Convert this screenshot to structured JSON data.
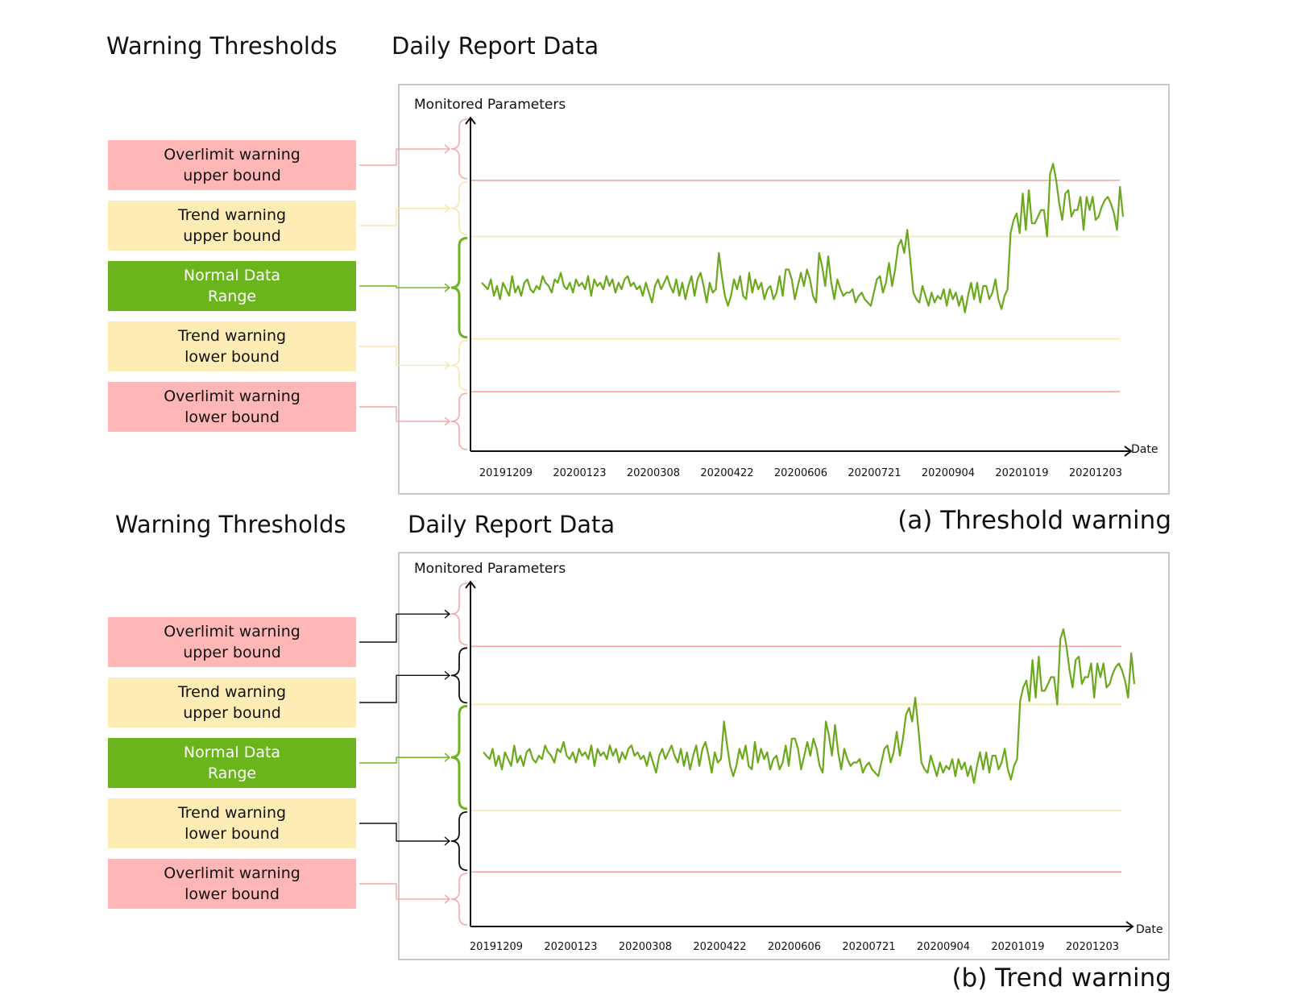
{
  "colors": {
    "overlimit": "#ffb6b6",
    "overlimit_line": "#f4a6a6",
    "trend": "#fdecb3",
    "trend_line": "#f8e6a6",
    "normal": "#6ab41c",
    "series": "#6aa91c",
    "highlight_bracket": "#111111"
  },
  "panels": [
    {
      "thresholds_heading": "Warning Thresholds",
      "data_heading": "Daily Report Data",
      "caption": "(a) Threshold warning",
      "boxes": [
        {
          "kind": "over",
          "line1": "Overlimit warning",
          "line2": "upper bound"
        },
        {
          "kind": "trend",
          "line1": "Trend warning",
          "line2": "upper bound"
        },
        {
          "kind": "normal",
          "line1": "Normal Data",
          "line2": "Range"
        },
        {
          "kind": "trend",
          "line1": "Trend warning",
          "line2": "lower bound"
        },
        {
          "kind": "over",
          "line1": "Overlimit warning",
          "line2": "lower bound"
        }
      ],
      "highlighted_ranges": [
        "normal"
      ]
    },
    {
      "thresholds_heading": "Warning Thresholds",
      "data_heading": "Daily Report Data",
      "caption": "(b) Trend warning",
      "boxes": [
        {
          "kind": "over",
          "line1": "Overlimit warning",
          "line2": "upper bound"
        },
        {
          "kind": "trend",
          "line1": "Trend warning",
          "line2": "upper bound"
        },
        {
          "kind": "normal",
          "line1": "Normal Data",
          "line2": "Range"
        },
        {
          "kind": "trend",
          "line1": "Trend warning",
          "line2": "lower bound"
        },
        {
          "kind": "over",
          "line1": "Overlimit warning",
          "line2": "lower bound"
        }
      ],
      "highlighted_ranges": [
        "normal",
        "trend_upper",
        "trend_lower"
      ]
    }
  ],
  "chart_data": [
    {
      "type": "line",
      "ylabel": "Monitored Parameters",
      "xlabel": "Date",
      "x_ticks": [
        "20191209",
        "20200123",
        "20200308",
        "20200422",
        "20200606",
        "20200721",
        "20200904",
        "20201019",
        "20201203"
      ],
      "y_range": [
        0,
        100
      ],
      "grid": false,
      "thresholds": {
        "overlimit_upper": 82,
        "trend_upper": 65,
        "trend_lower": 34,
        "overlimit_lower": 18
      },
      "series": [
        {
          "values": [
            51,
            50,
            49,
            52,
            47,
            50,
            46,
            51,
            49,
            47,
            53,
            48,
            50,
            47,
            51,
            52,
            49,
            48,
            50,
            49,
            53,
            51,
            50,
            48,
            52,
            51,
            54,
            50,
            49,
            51,
            48,
            52,
            50,
            51,
            49,
            53,
            47,
            52,
            50,
            51,
            49,
            53,
            50,
            52,
            48,
            51,
            49,
            52,
            53,
            50,
            51,
            49,
            50,
            47,
            51,
            48,
            45,
            50,
            52,
            49,
            51,
            53,
            50,
            48,
            52,
            47,
            51,
            46,
            50,
            53,
            47,
            52,
            54,
            50,
            45,
            51,
            48,
            49,
            60,
            53,
            47,
            44,
            47,
            52,
            49,
            53,
            47,
            46,
            54,
            48,
            52,
            49,
            51,
            46,
            49,
            50,
            46,
            48,
            53,
            47,
            55,
            55,
            52,
            46,
            50,
            54,
            50,
            55,
            52,
            47,
            45,
            60,
            56,
            50,
            59,
            51,
            46,
            52,
            49,
            47,
            48,
            48,
            49,
            45,
            47,
            48,
            46,
            45,
            44,
            48,
            52,
            53,
            48,
            51,
            57,
            50,
            55,
            62,
            64,
            60,
            67,
            58,
            48,
            46,
            45,
            50,
            47,
            44,
            48,
            45,
            47,
            46,
            49,
            44,
            49,
            46,
            48,
            44,
            47,
            42,
            47,
            51,
            46,
            51,
            45,
            50,
            50,
            46,
            48,
            52,
            46,
            43,
            47,
            49,
            66,
            70,
            72,
            66,
            78,
            67,
            79,
            69,
            69,
            71,
            73,
            73,
            65,
            84,
            87,
            82,
            75,
            70,
            78,
            79,
            71,
            73,
            73,
            77,
            67,
            77,
            73,
            77,
            70,
            71,
            74,
            76,
            77,
            75,
            72,
            67,
            80,
            71
          ]
        }
      ]
    },
    {
      "type": "line",
      "ylabel": "Monitored Parameters",
      "xlabel": "Date",
      "x_ticks": [
        "20191209",
        "20200123",
        "20200308",
        "20200422",
        "20200606",
        "20200721",
        "20200904",
        "20201019",
        "20201203"
      ],
      "y_range": [
        0,
        100
      ],
      "grid": false,
      "thresholds": {
        "overlimit_upper": 82,
        "trend_upper": 65,
        "trend_lower": 34,
        "overlimit_lower": 16
      },
      "series": [
        {
          "values": [
            51,
            50,
            49,
            52,
            47,
            50,
            46,
            51,
            49,
            47,
            53,
            48,
            50,
            47,
            51,
            52,
            49,
            48,
            50,
            49,
            53,
            51,
            50,
            48,
            52,
            51,
            54,
            50,
            49,
            51,
            48,
            52,
            50,
            51,
            49,
            53,
            47,
            52,
            50,
            51,
            49,
            53,
            50,
            52,
            48,
            51,
            49,
            52,
            53,
            50,
            51,
            49,
            50,
            47,
            51,
            48,
            45,
            50,
            52,
            49,
            51,
            53,
            50,
            48,
            52,
            47,
            51,
            46,
            50,
            53,
            47,
            52,
            54,
            50,
            45,
            51,
            48,
            49,
            60,
            53,
            47,
            44,
            47,
            52,
            49,
            53,
            47,
            46,
            54,
            48,
            52,
            49,
            51,
            46,
            49,
            50,
            46,
            48,
            53,
            47,
            55,
            55,
            52,
            46,
            50,
            54,
            50,
            55,
            52,
            47,
            45,
            60,
            56,
            50,
            59,
            51,
            46,
            52,
            49,
            47,
            48,
            48,
            49,
            45,
            47,
            48,
            46,
            45,
            44,
            48,
            52,
            53,
            48,
            51,
            57,
            50,
            55,
            62,
            64,
            60,
            67,
            58,
            48,
            46,
            45,
            50,
            47,
            44,
            48,
            45,
            47,
            46,
            49,
            44,
            49,
            46,
            48,
            44,
            47,
            42,
            47,
            51,
            46,
            51,
            45,
            50,
            50,
            46,
            48,
            52,
            46,
            43,
            47,
            49,
            66,
            70,
            72,
            66,
            78,
            67,
            79,
            69,
            69,
            71,
            73,
            73,
            65,
            84,
            87,
            82,
            75,
            70,
            78,
            79,
            71,
            73,
            73,
            77,
            67,
            77,
            73,
            77,
            70,
            71,
            74,
            76,
            77,
            75,
            72,
            67,
            80,
            71
          ]
        }
      ]
    }
  ]
}
